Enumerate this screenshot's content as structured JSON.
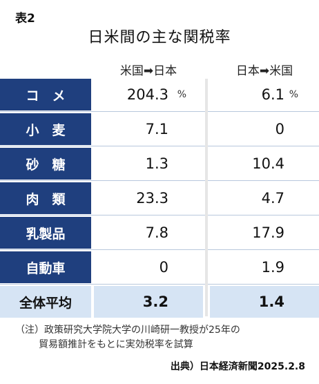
{
  "figure_label": "表2",
  "title": "日米間の主な関税率",
  "columns": [
    "米国➡日本",
    "日本➡米国"
  ],
  "percent_sign": "%",
  "rows": [
    {
      "label": "コ　メ",
      "us_to_jp": "204.3",
      "jp_to_us": "6.1"
    },
    {
      "label": "小　麦",
      "us_to_jp": "7.1",
      "jp_to_us": "0"
    },
    {
      "label": "砂　糖",
      "us_to_jp": "1.3",
      "jp_to_us": "10.4"
    },
    {
      "label": "肉　類",
      "us_to_jp": "23.3",
      "jp_to_us": "4.7"
    },
    {
      "label": "乳製品",
      "us_to_jp": "7.8",
      "jp_to_us": "17.9"
    },
    {
      "label": "自動車",
      "us_to_jp": "0",
      "jp_to_us": "1.9"
    }
  ],
  "total": {
    "label": "全体平均",
    "us_to_jp": "3.2",
    "jp_to_us": "1.4"
  },
  "note_line1": "（注）政策研究大学院大学の川崎研一教授が25年の",
  "note_line2": "貿易額推計をもとに実効税率を試算",
  "source": "出典）日本経済新聞2025.2.8"
}
